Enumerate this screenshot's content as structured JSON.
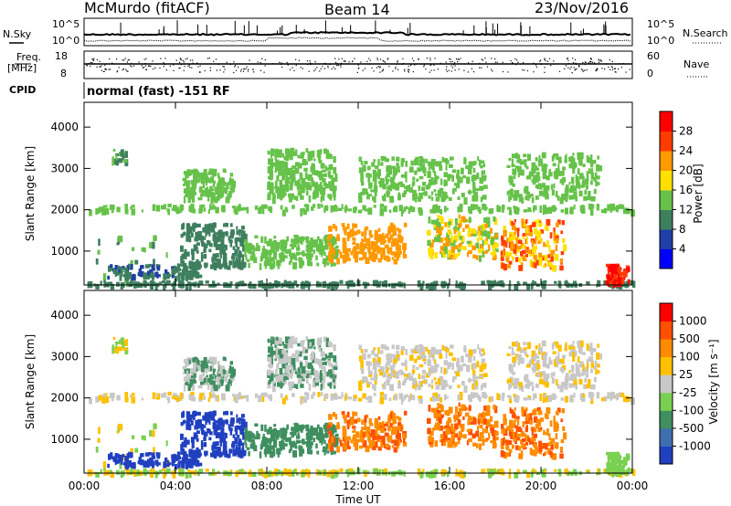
{
  "header": {
    "title": "McMurdo (fitACF)",
    "beam": "Beam 14",
    "date": "23/Nov/2016"
  },
  "top_panel": {
    "left_label": "N.Sky",
    "right_label": "N.Search",
    "ticks_left": [
      "10^5",
      "10^0"
    ],
    "ticks_right": [
      "10^5",
      "10^0"
    ]
  },
  "freq_panel": {
    "left_label_1": "Freq.",
    "left_label_2": "[MHz]",
    "right_label": "Nave",
    "ticks_left": [
      "18",
      "8"
    ],
    "ticks_right": [
      "60",
      "0"
    ]
  },
  "cpid": {
    "label": "CPID",
    "text": "normal (fast) -151 RF"
  },
  "chart_data": [
    {
      "type": "heatmap",
      "title": "",
      "ylabel": "Slant Range [km]",
      "ylim": [
        180,
        4600
      ],
      "yticks": [
        "1000",
        "2000",
        "3000",
        "4000"
      ],
      "colorbar": {
        "label": "Power [dB]",
        "ticks": [
          "4",
          "8",
          "12",
          "16",
          "20",
          "24",
          "28"
        ],
        "colors": [
          "#0000ff",
          "#1f3fa6",
          "#3e7f5e",
          "#66c24a",
          "#ffe000",
          "#ff9900",
          "#ff3c00",
          "#ff0000"
        ]
      }
    },
    {
      "type": "heatmap",
      "title": "",
      "xlabel": "Time UT",
      "ylabel": "Slant Range [km]",
      "ylim": [
        180,
        4600
      ],
      "xticks": [
        "00:00",
        "04:00",
        "08:00",
        "12:00",
        "16:00",
        "20:00",
        "00:00"
      ],
      "yticks": [
        "1000",
        "2000",
        "3000",
        "4000"
      ],
      "colorbar": {
        "label": "Velocity [m s⁻¹]",
        "ticks": [
          "1000",
          "500",
          "100",
          "25",
          "-25",
          "-100",
          "-500",
          "-1000"
        ],
        "colors": [
          "#2040c0",
          "#3f6fb0",
          "#3f8f60",
          "#7ad050",
          "#c8c8c8",
          "#ffc000",
          "#ff8c00",
          "#ff5000",
          "#ff0000"
        ]
      }
    }
  ]
}
